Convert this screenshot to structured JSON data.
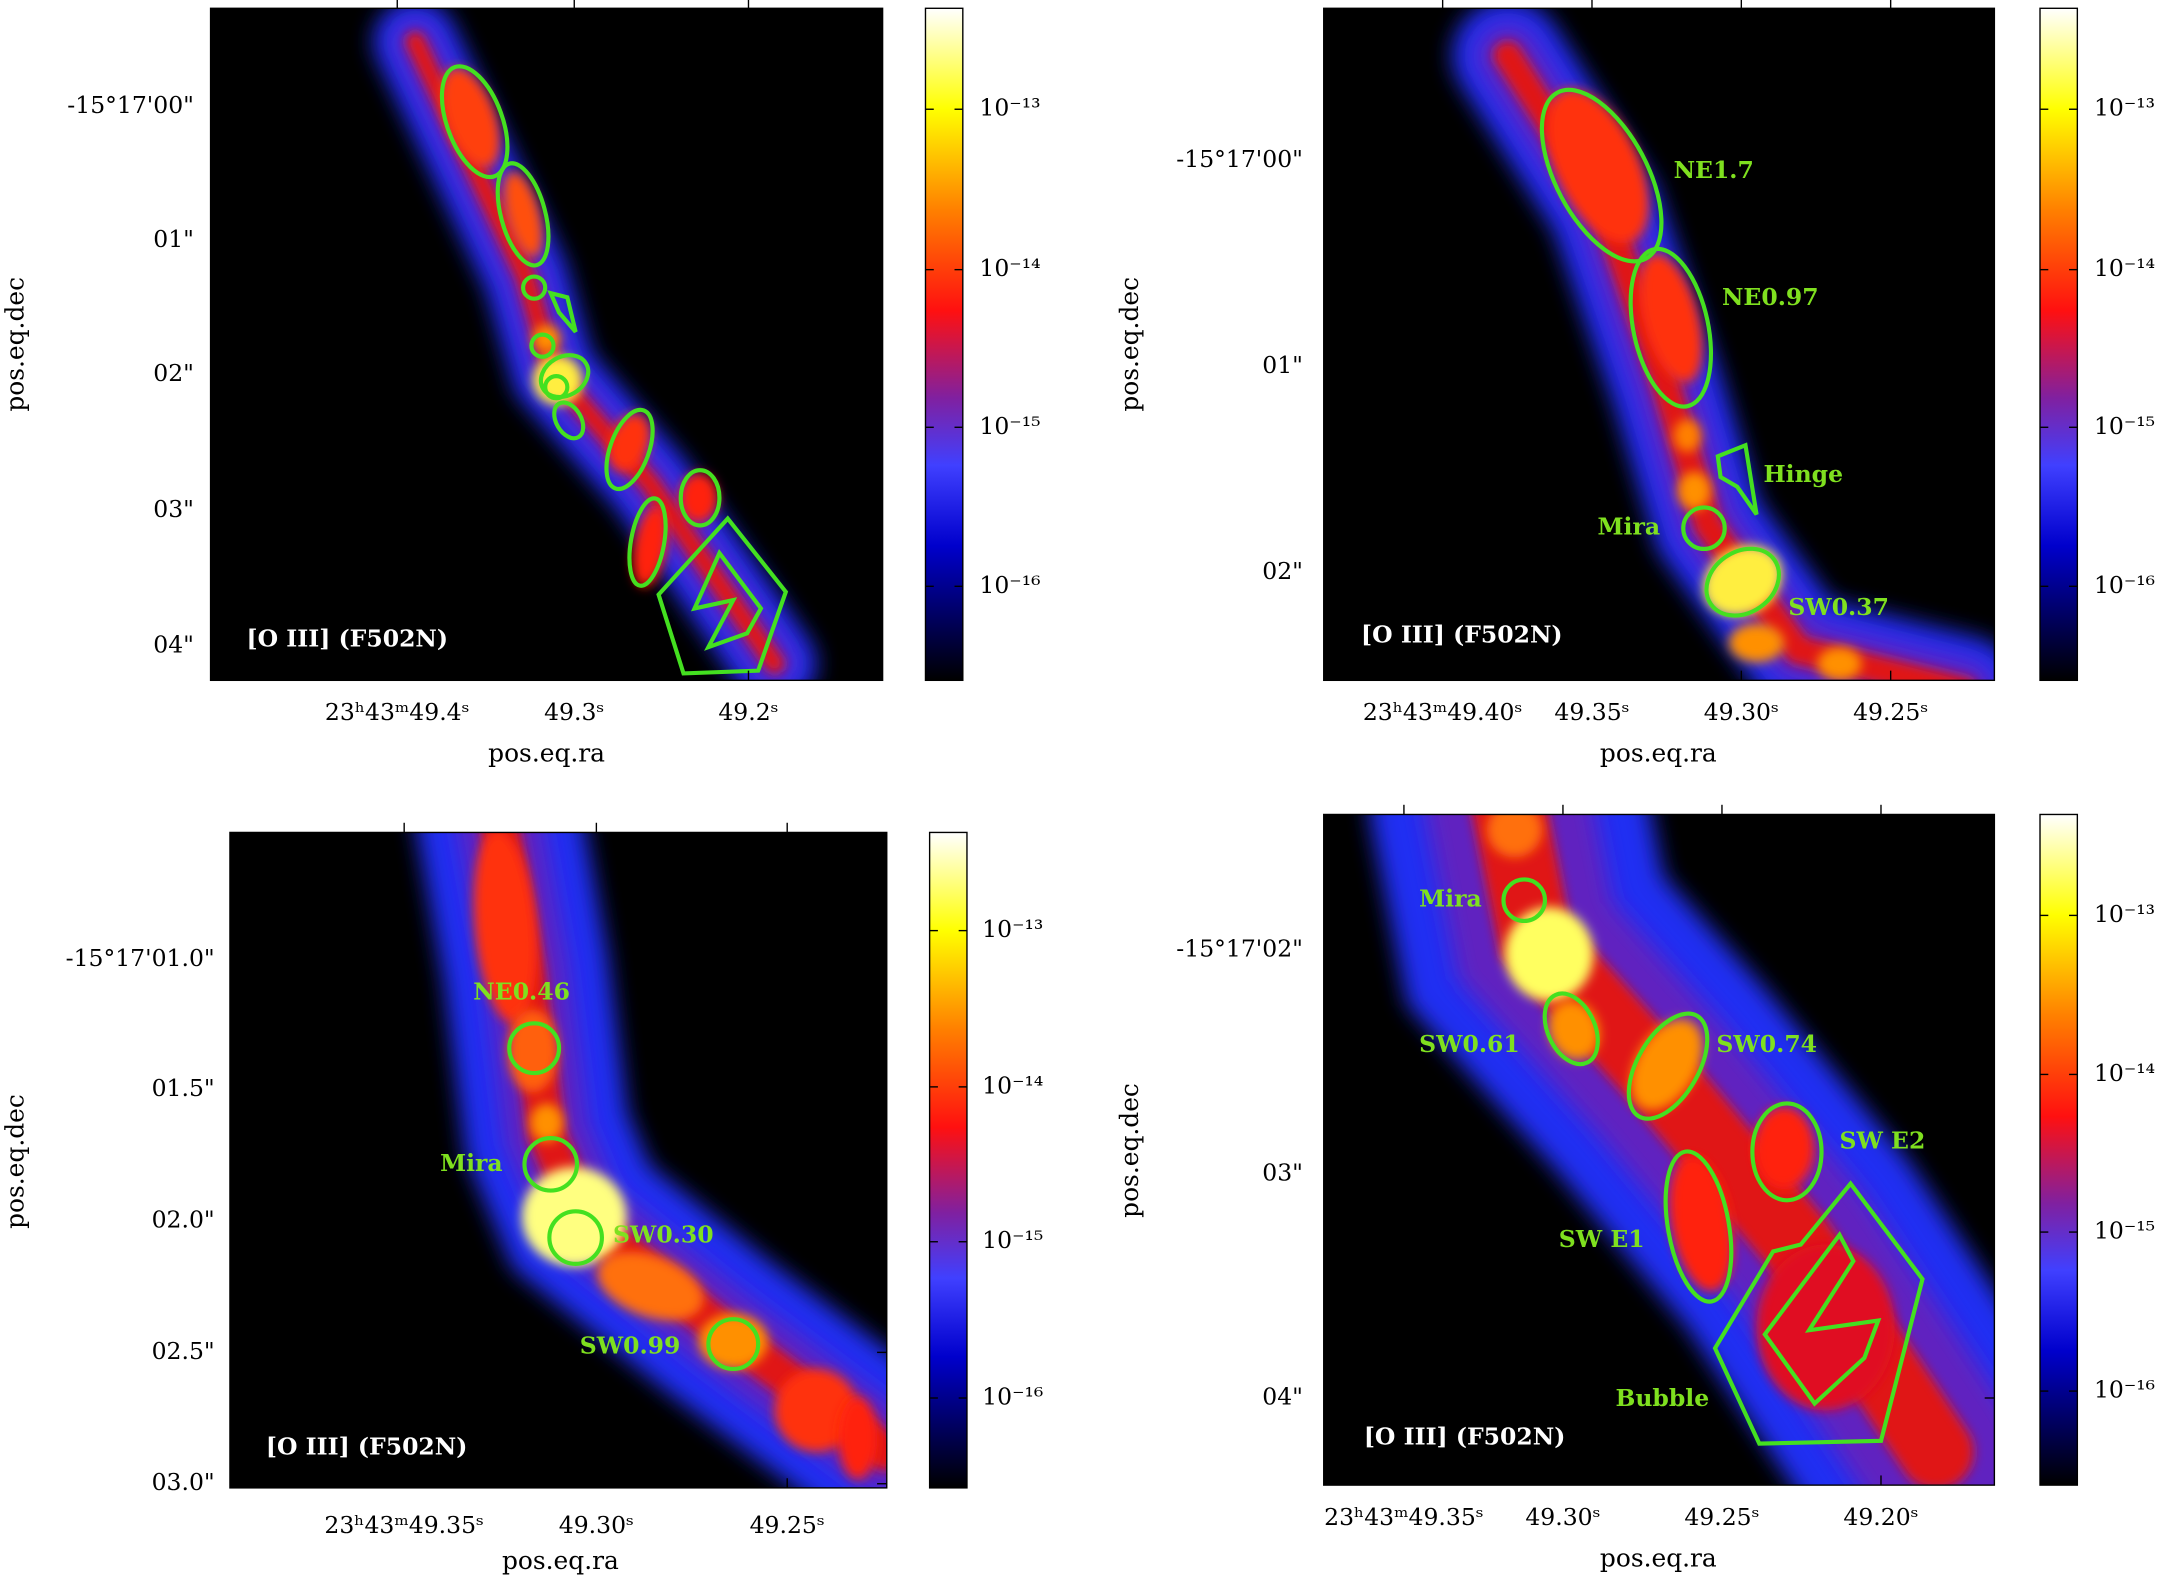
{
  "panels": [
    {
      "band_label": "[O III] (F502N)",
      "xlabel": "pos.eq.ra",
      "ylabel": "pos.eq.dec",
      "xticks": [
        "23ʰ43ᵐ49.4ˢ",
        "49.3ˢ",
        "49.2ˢ"
      ],
      "yticks": [
        "-15°17'00\"",
        "01\"",
        "02\"",
        "03\"",
        "04\""
      ],
      "colorbar_ticks": [
        "10⁻¹³",
        "10⁻¹⁴",
        "10⁻¹⁵",
        "10⁻¹⁶"
      ],
      "regions": []
    },
    {
      "band_label": "[O III] (F502N)",
      "xlabel": "pos.eq.ra",
      "ylabel": "pos.eq.dec",
      "xticks": [
        "23ʰ43ᵐ49.40ˢ",
        "49.35ˢ",
        "49.30ˢ",
        "49.25ˢ"
      ],
      "yticks": [
        "-15°17'00\"",
        "01\"",
        "02\""
      ],
      "colorbar_ticks": [
        "10⁻¹³",
        "10⁻¹⁴",
        "10⁻¹⁵",
        "10⁻¹⁶"
      ],
      "regions": [
        "NE1.7",
        "NE0.97",
        "Hinge",
        "Mira",
        "SW0.37"
      ]
    },
    {
      "band_label": "[O III] (F502N)",
      "xlabel": "pos.eq.ra",
      "ylabel": "pos.eq.dec",
      "xticks": [
        "23ʰ43ᵐ49.35ˢ",
        "49.30ˢ",
        "49.25ˢ"
      ],
      "yticks": [
        "-15°17'01.0\"",
        "01.5\"",
        "02.0\"",
        "02.5\"",
        "03.0\""
      ],
      "colorbar_ticks": [
        "10⁻¹³",
        "10⁻¹⁴",
        "10⁻¹⁵",
        "10⁻¹⁶"
      ],
      "regions": [
        "NE0.46",
        "Mira",
        "SW0.30",
        "SW0.99"
      ]
    },
    {
      "band_label": "[O III] (F502N)",
      "xlabel": "pos.eq.ra",
      "ylabel": "pos.eq.dec",
      "xticks": [
        "23ʰ43ᵐ49.35ˢ",
        "49.30ˢ",
        "49.25ˢ",
        "49.20ˢ"
      ],
      "yticks": [
        "-15°17'02\"",
        "03\"",
        "04\""
      ],
      "colorbar_ticks": [
        "10⁻¹³",
        "10⁻¹⁴",
        "10⁻¹⁵",
        "10⁻¹⁶"
      ],
      "regions": [
        "Mira",
        "SW0.61",
        "SW0.74",
        "SW E2",
        "SW E1",
        "Bubble"
      ]
    }
  ]
}
